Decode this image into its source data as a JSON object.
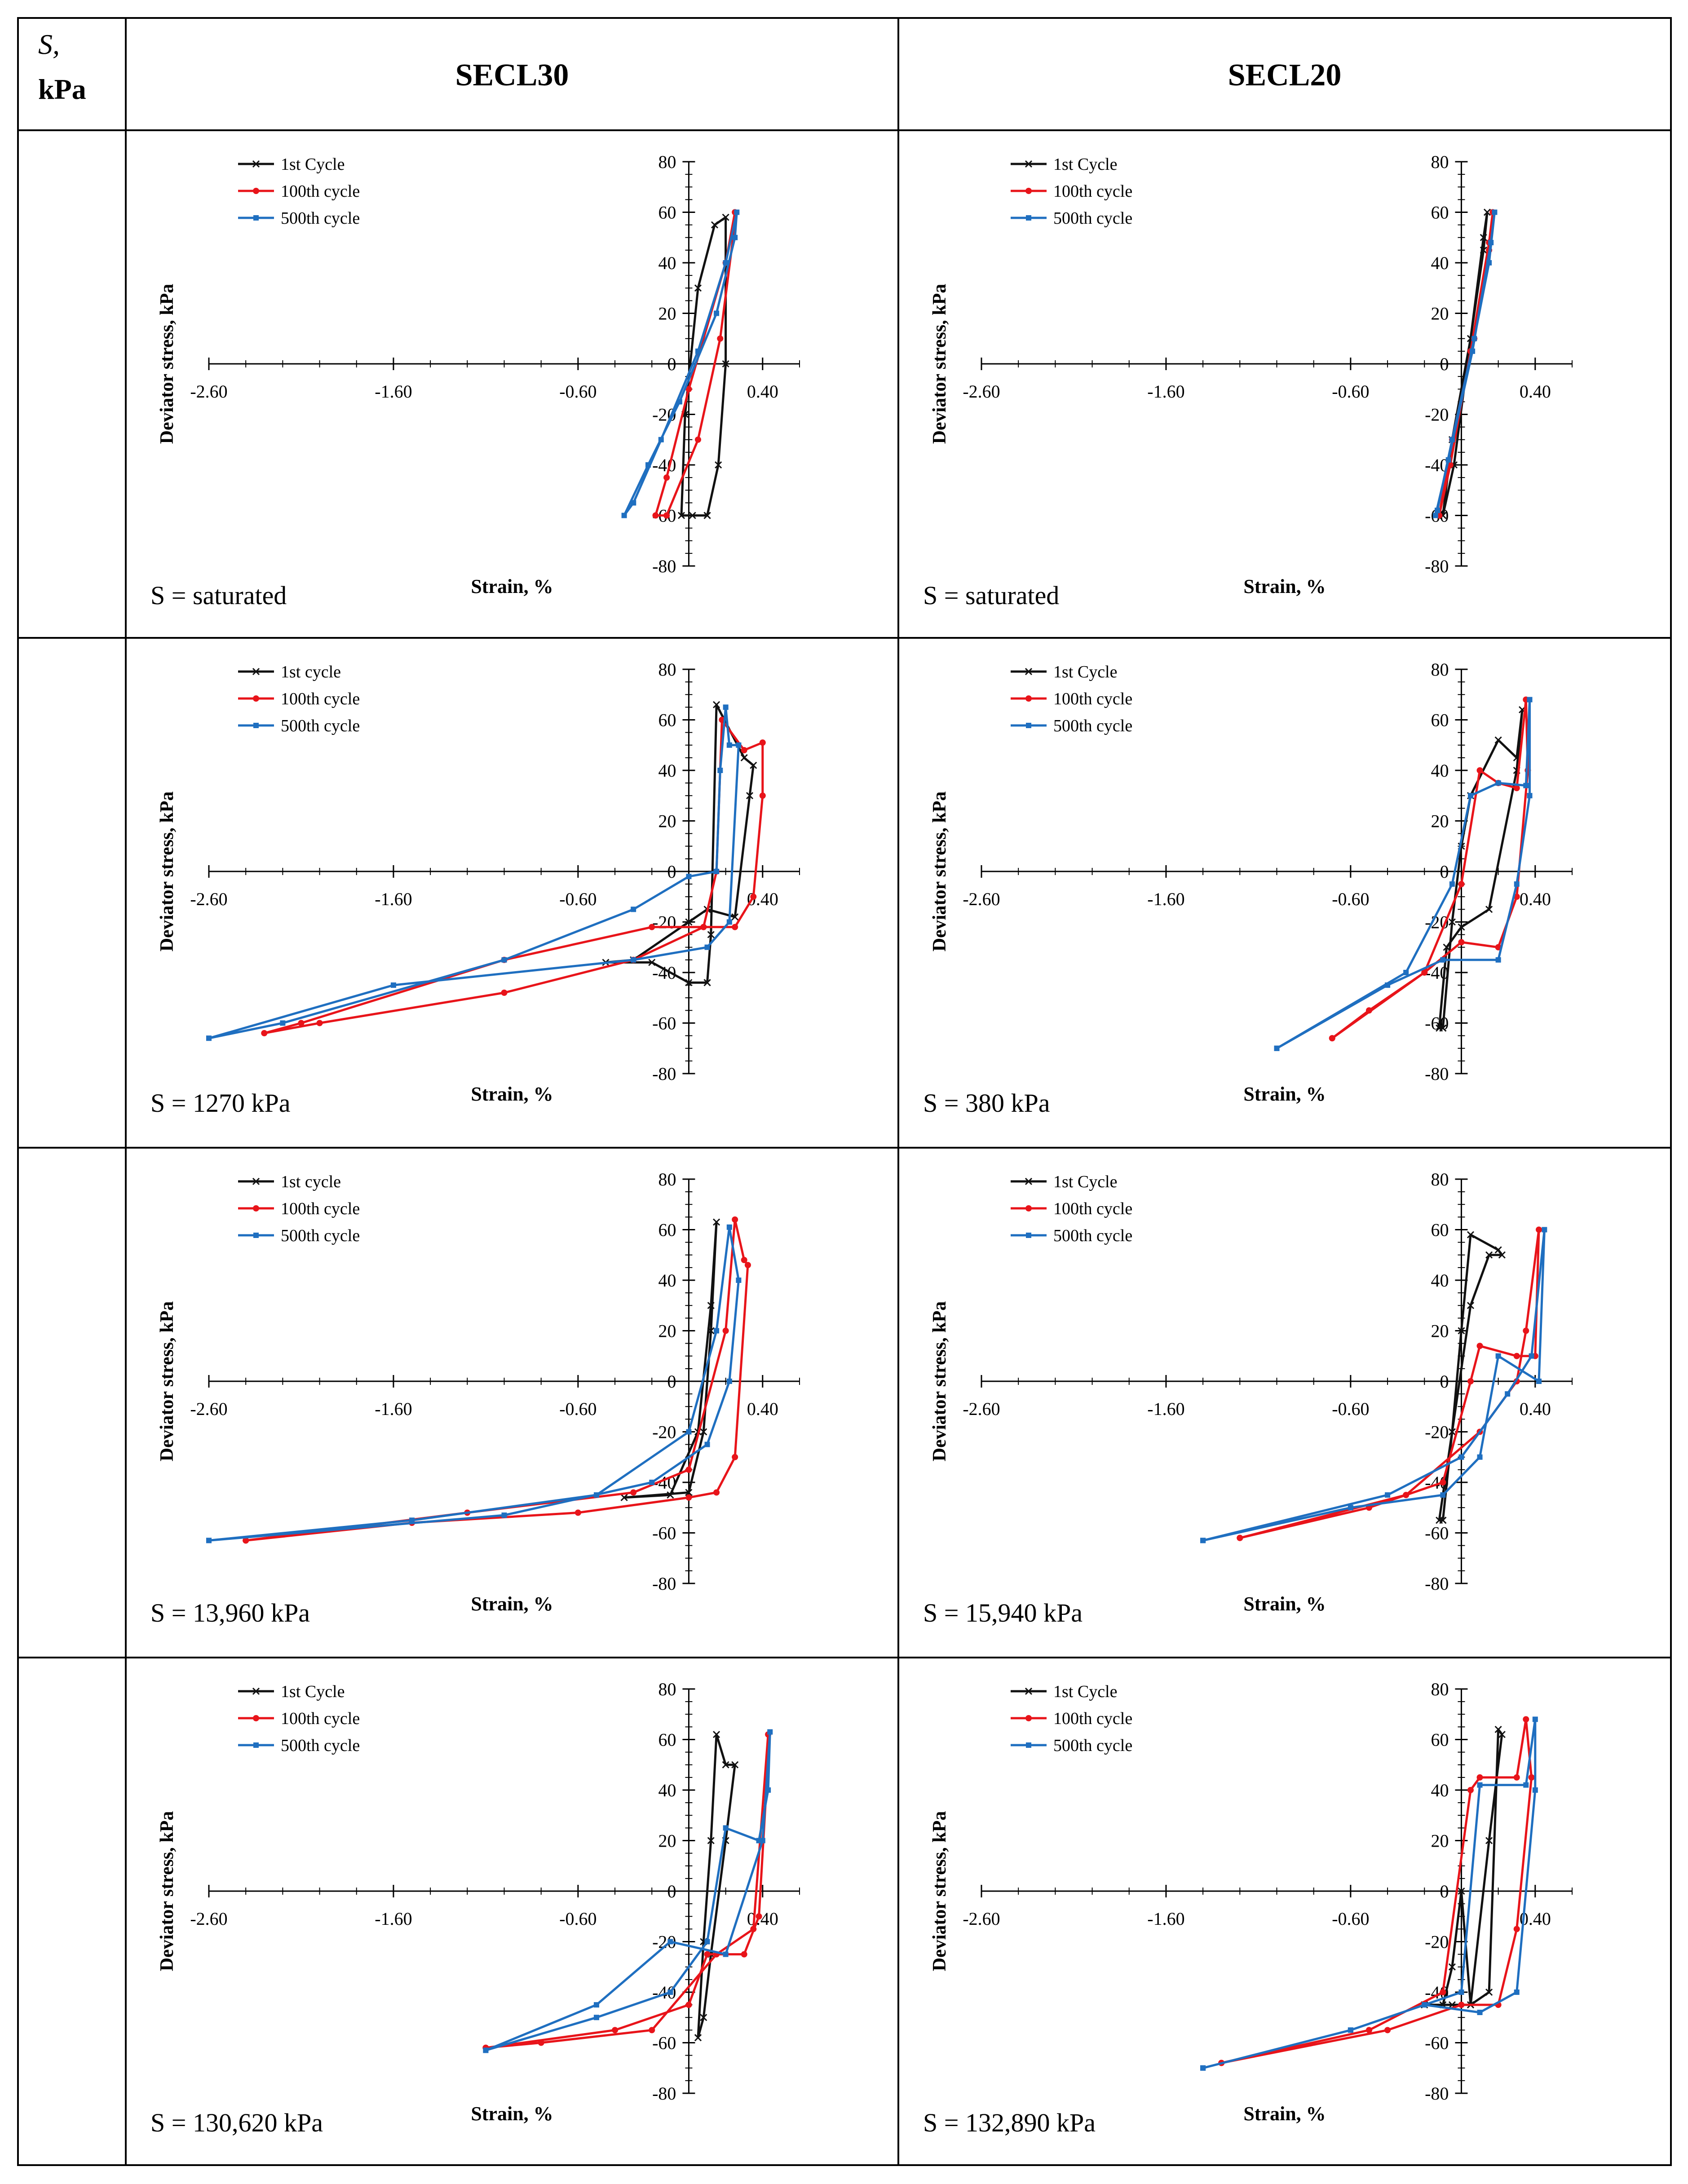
{
  "table": {
    "header": {
      "s_label_italic": "S,",
      "s_label_unit": "kPa",
      "col1": "SECL30",
      "col2": "SECL20"
    }
  },
  "colors": {
    "cycle1": "#111111",
    "cycle100": "#e8141a",
    "cycle500": "#1f6fc0",
    "grid": "#000000"
  },
  "legend_labels": {
    "secl30": [
      "1st Cycle",
      "100th cycle",
      "500th cycle"
    ],
    "secl30_alt": [
      "1st cycle",
      "100th cycle",
      "500th cycle"
    ],
    "secl20": [
      "1st Cycle",
      "100th cycle",
      "500th cycle"
    ]
  },
  "chart_data": [
    {
      "id": "secl30-sat",
      "type": "line",
      "xlabel": "Strain, %",
      "ylabel": "Deviator stress, kPa",
      "xlim": [
        -2.6,
        0.6
      ],
      "ylim": [
        -80,
        80
      ],
      "xticks": [
        "-2.60",
        "-1.60",
        "-0.60",
        "0.40"
      ],
      "yticks": [
        80,
        60,
        40,
        20,
        0,
        -20,
        -40,
        -60,
        -80
      ],
      "caption": "S = saturated",
      "legend": [
        "1st Cycle",
        "100th cycle",
        "500th cycle"
      ],
      "series": [
        {
          "name": "1st Cycle",
          "x": [
            0.1,
            0.16,
            0.2,
            0.2,
            0.14,
            0.05,
            -0.02,
            -0.04,
            0.02,
            0.1
          ],
          "y": [
            -60,
            -40,
            0,
            58,
            55,
            30,
            -20,
            -60,
            -60,
            -60
          ]
        },
        {
          "name": "100th cycle",
          "x": [
            -0.12,
            0.05,
            0.17,
            0.24,
            0.25,
            0.2,
            0.0,
            -0.12,
            -0.18,
            -0.12
          ],
          "y": [
            -60,
            -30,
            10,
            50,
            60,
            40,
            -10,
            -45,
            -60,
            -60
          ]
        },
        {
          "name": "500th cycle",
          "x": [
            -0.3,
            -0.15,
            0.05,
            0.2,
            0.26,
            0.25,
            0.15,
            -0.05,
            -0.22,
            -0.35,
            -0.3
          ],
          "y": [
            -55,
            -30,
            5,
            40,
            60,
            50,
            20,
            -15,
            -40,
            -60,
            -55
          ]
        }
      ]
    },
    {
      "id": "secl20-sat",
      "type": "line",
      "xlabel": "Strain, %",
      "ylabel": "Deviator stress, kPa",
      "xlim": [
        -2.6,
        0.6
      ],
      "ylim": [
        -80,
        80
      ],
      "xticks": [
        "-2.60",
        "-1.60",
        "-0.60",
        "0.40"
      ],
      "yticks": [
        80,
        60,
        40,
        20,
        0,
        -20,
        -40,
        -60,
        -80
      ],
      "caption": "S = saturated",
      "legend": [
        "1st Cycle",
        "100th cycle",
        "500th cycle"
      ],
      "series": [
        {
          "name": "1st Cycle",
          "x": [
            -0.1,
            -0.05,
            0.05,
            0.12,
            0.14,
            0.12,
            0.05,
            -0.04,
            -0.1
          ],
          "y": [
            -60,
            -30,
            10,
            45,
            60,
            50,
            10,
            -40,
            -60
          ]
        },
        {
          "name": "100th cycle",
          "x": [
            -0.12,
            -0.05,
            0.07,
            0.15,
            0.17,
            0.15,
            0.05,
            -0.06,
            -0.12
          ],
          "y": [
            -60,
            -30,
            10,
            45,
            60,
            48,
            5,
            -40,
            -60
          ]
        },
        {
          "name": "500th cycle",
          "x": [
            -0.13,
            -0.05,
            0.07,
            0.15,
            0.18,
            0.16,
            0.06,
            -0.07,
            -0.14,
            -0.13
          ],
          "y": [
            -58,
            -30,
            10,
            40,
            60,
            48,
            5,
            -38,
            -60,
            -58
          ]
        }
      ]
    },
    {
      "id": "secl30-1270",
      "type": "line",
      "xlabel": "Strain, %",
      "ylabel": "Deviator stress, kPa",
      "xlim": [
        -2.6,
        0.6
      ],
      "ylim": [
        -80,
        80
      ],
      "xticks": [
        "-2.60",
        "-1.60",
        "-0.60",
        "0.40"
      ],
      "yticks": [
        80,
        60,
        40,
        20,
        0,
        -20,
        -40,
        -60,
        -80
      ],
      "caption": "S = 1270 kPa",
      "legend": [
        "1st cycle",
        "100th cycle",
        "500th cycle"
      ],
      "series": [
        {
          "name": "1st cycle",
          "x": [
            0.1,
            0.12,
            0.15,
            0.3,
            0.35,
            0.33,
            0.25,
            0.1,
            0.0,
            -0.3,
            -0.45,
            -0.2,
            0.0,
            0.1
          ],
          "y": [
            -44,
            -25,
            66,
            45,
            42,
            30,
            -18,
            -15,
            -20,
            -35,
            -36,
            -36,
            -44,
            -44
          ]
        },
        {
          "name": "100th cycle",
          "x": [
            0.08,
            0.15,
            0.18,
            0.3,
            0.4,
            0.4,
            0.35,
            0.25,
            -0.2,
            -1.0,
            -2.1,
            -2.3,
            -2.0,
            -1.0,
            -0.3,
            0.08
          ],
          "y": [
            -22,
            0,
            60,
            48,
            51,
            30,
            -10,
            -22,
            -22,
            -35,
            -60,
            -64,
            -60,
            -48,
            -35,
            -22
          ]
        },
        {
          "name": "500th cycle",
          "x": [
            0.15,
            0.17,
            0.2,
            0.22,
            0.27,
            0.22,
            0.1,
            -0.3,
            -1.6,
            -2.6,
            -2.2,
            -1.0,
            -0.3,
            0.0,
            0.15
          ],
          "y": [
            0,
            40,
            65,
            50,
            50,
            -20,
            -30,
            -35,
            -45,
            -66,
            -60,
            -35,
            -15,
            -2,
            0
          ]
        }
      ]
    },
    {
      "id": "secl20-380",
      "type": "line",
      "xlabel": "Strain, %",
      "ylabel": "Deviator stress, kPa",
      "xlim": [
        -2.6,
        0.6
      ],
      "ylim": [
        -80,
        80
      ],
      "xticks": [
        "-2.60",
        "-1.60",
        "-0.60",
        "0.40"
      ],
      "yticks": [
        80,
        60,
        40,
        20,
        0,
        -20,
        -40,
        -60,
        -80
      ],
      "caption": "S = 380 kPa",
      "legend": [
        "1st Cycle",
        "100th cycle",
        "500th cycle"
      ],
      "series": [
        {
          "name": "1st Cycle",
          "x": [
            -0.1,
            -0.05,
            0.0,
            0.05,
            0.2,
            0.3,
            0.33,
            0.3,
            0.15,
            0.0,
            -0.08,
            -0.12,
            -0.1
          ],
          "y": [
            -62,
            -20,
            10,
            30,
            52,
            45,
            64,
            40,
            -15,
            -22,
            -30,
            -62,
            -62
          ]
        },
        {
          "name": "100th cycle",
          "x": [
            -0.7,
            -0.2,
            0.0,
            0.1,
            0.2,
            0.3,
            0.35,
            0.36,
            0.3,
            0.2,
            0.0,
            -0.2,
            -0.5,
            -0.7
          ],
          "y": [
            -66,
            -40,
            -5,
            40,
            35,
            33,
            68,
            40,
            -10,
            -30,
            -28,
            -40,
            -55,
            -66
          ]
        },
        {
          "name": "500th cycle",
          "x": [
            -1.0,
            -0.3,
            -0.05,
            0.05,
            0.2,
            0.35,
            0.37,
            0.37,
            0.3,
            0.2,
            -0.1,
            -0.4,
            -1.0
          ],
          "y": [
            -70,
            -40,
            -5,
            30,
            35,
            34,
            68,
            30,
            -5,
            -35,
            -35,
            -45,
            -70
          ]
        }
      ]
    },
    {
      "id": "secl30-13960",
      "type": "line",
      "xlabel": "Strain, %",
      "ylabel": "Deviator stress, kPa",
      "xlim": [
        -2.6,
        0.6
      ],
      "ylim": [
        -80,
        80
      ],
      "xticks": [
        "-2.60",
        "-1.60",
        "-0.60",
        "0.40"
      ],
      "yticks": [
        80,
        60,
        40,
        20,
        0,
        -20,
        -40,
        -60,
        -80
      ],
      "caption": "S = 13,960 kPa",
      "legend": [
        "1st cycle",
        "100th cycle",
        "500th cycle"
      ],
      "series": [
        {
          "name": "1st cycle",
          "x": [
            -0.35,
            0.0,
            0.08,
            0.12,
            0.15,
            0.12,
            0.05,
            -0.1,
            -0.35
          ],
          "y": [
            -46,
            -44,
            -20,
            20,
            63,
            30,
            -20,
            -45,
            -46
          ]
        },
        {
          "name": "100th cycle",
          "x": [
            -2.4,
            -1.2,
            -0.3,
            0.0,
            0.2,
            0.25,
            0.3,
            0.32,
            0.25,
            0.15,
            0.0,
            -0.6,
            -1.5,
            -2.4
          ],
          "y": [
            -63,
            -52,
            -44,
            -35,
            20,
            64,
            48,
            46,
            -30,
            -44,
            -46,
            -52,
            -56,
            -63
          ]
        },
        {
          "name": "500th cycle",
          "x": [
            -2.6,
            -1.5,
            -0.5,
            0.0,
            0.15,
            0.22,
            0.27,
            0.22,
            0.1,
            -0.2,
            -1.0,
            -2.6
          ],
          "y": [
            -63,
            -55,
            -45,
            -20,
            20,
            61,
            40,
            0,
            -25,
            -40,
            -53,
            -63
          ]
        }
      ]
    },
    {
      "id": "secl20-15940",
      "type": "line",
      "xlabel": "Strain, %",
      "ylabel": "Deviator stress, kPa",
      "xlim": [
        -2.6,
        0.6
      ],
      "ylim": [
        -80,
        80
      ],
      "xticks": [
        "-2.60",
        "-1.60",
        "-0.60",
        "0.40"
      ],
      "yticks": [
        80,
        60,
        40,
        20,
        0,
        -20,
        -40,
        -60,
        -80
      ],
      "caption": "S = 15,940 kPa",
      "legend": [
        "1st Cycle",
        "100th cycle",
        "500th cycle"
      ],
      "series": [
        {
          "name": "1st Cycle",
          "x": [
            -0.1,
            -0.05,
            0.0,
            0.05,
            0.2,
            0.22,
            0.15,
            0.05,
            -0.05,
            -0.12,
            -0.1
          ],
          "y": [
            -55,
            -20,
            20,
            58,
            52,
            50,
            50,
            30,
            -20,
            -55,
            -55
          ]
        },
        {
          "name": "100th cycle",
          "x": [
            -1.2,
            -0.5,
            -0.1,
            0.05,
            0.1,
            0.3,
            0.4,
            0.42,
            0.35,
            0.3,
            0.1,
            -0.3,
            -1.2
          ],
          "y": [
            -62,
            -50,
            -40,
            0,
            14,
            10,
            10,
            60,
            20,
            0,
            -20,
            -45,
            -62
          ]
        },
        {
          "name": "500th cycle",
          "x": [
            -1.4,
            -0.6,
            -0.1,
            0.1,
            0.2,
            0.42,
            0.45,
            0.38,
            0.25,
            0.0,
            -0.4,
            -1.4
          ],
          "y": [
            -63,
            -50,
            -45,
            -30,
            10,
            0,
            60,
            10,
            -5,
            -30,
            -45,
            -63
          ]
        }
      ]
    },
    {
      "id": "secl30-130620",
      "type": "line",
      "xlabel": "Strain, %",
      "ylabel": "Deviator stress, kPa",
      "xlim": [
        -2.6,
        0.6
      ],
      "ylim": [
        -80,
        80
      ],
      "xticks": [
        "-2.60",
        "-1.60",
        "-0.60",
        "0.40"
      ],
      "yticks": [
        80,
        60,
        40,
        20,
        0,
        -20,
        -40,
        -60,
        -80
      ],
      "caption": "S = 130,620 kPa",
      "legend": [
        "1st Cycle",
        "100th cycle",
        "500th cycle"
      ],
      "series": [
        {
          "name": "1st Cycle",
          "x": [
            0.05,
            0.08,
            0.12,
            0.15,
            0.2,
            0.25,
            0.2,
            0.12,
            0.08,
            0.05
          ],
          "y": [
            -58,
            -20,
            20,
            62,
            50,
            50,
            20,
            -25,
            -50,
            -58
          ]
        },
        {
          "name": "100th cycle",
          "x": [
            -1.1,
            -0.4,
            0.0,
            0.1,
            0.3,
            0.38,
            0.42,
            0.43,
            0.35,
            0.15,
            -0.2,
            -0.8,
            -1.1
          ],
          "y": [
            -62,
            -55,
            -45,
            -25,
            -25,
            -10,
            40,
            62,
            -15,
            -25,
            -55,
            -60,
            -62
          ]
        },
        {
          "name": "500th cycle",
          "x": [
            -1.1,
            -0.5,
            -0.1,
            0.1,
            0.2,
            0.38,
            0.43,
            0.44,
            0.4,
            0.2,
            -0.1,
            -0.5,
            -1.1
          ],
          "y": [
            -63,
            -50,
            -40,
            -20,
            25,
            20,
            40,
            63,
            20,
            -25,
            -20,
            -45,
            -63
          ]
        }
      ]
    },
    {
      "id": "secl20-132890",
      "type": "line",
      "xlabel": "Strain, %",
      "ylabel": "Deviator stress, kPa",
      "xlim": [
        -2.6,
        0.6
      ],
      "ylim": [
        -80,
        80
      ],
      "xticks": [
        "-2.60",
        "-1.60",
        "-0.60",
        "0.40"
      ],
      "yticks": [
        80,
        60,
        40,
        20,
        0,
        -20,
        -40,
        -60,
        -80
      ],
      "caption": "S = 132,890 kPa",
      "legend": [
        "1st Cycle",
        "100th cycle",
        "500th cycle"
      ],
      "series": [
        {
          "name": "1st Cycle",
          "x": [
            -0.2,
            -0.1,
            -0.05,
            0.0,
            0.05,
            0.15,
            0.2,
            0.22,
            0.15,
            0.05,
            -0.05,
            -0.2
          ],
          "y": [
            -45,
            -45,
            -30,
            0,
            -45,
            -40,
            64,
            62,
            20,
            -45,
            -45,
            -45
          ]
        },
        {
          "name": "100th cycle",
          "x": [
            -1.3,
            -0.5,
            -0.1,
            0.05,
            0.1,
            0.3,
            0.35,
            0.38,
            0.3,
            0.2,
            0.0,
            -0.4,
            -1.3
          ],
          "y": [
            -68,
            -55,
            -40,
            40,
            45,
            45,
            68,
            45,
            -15,
            -45,
            -45,
            -55,
            -68
          ]
        },
        {
          "name": "500th cycle",
          "x": [
            -1.4,
            -0.6,
            -0.2,
            0.0,
            0.1,
            0.35,
            0.4,
            0.4,
            0.3,
            0.1,
            -0.2,
            -0.6,
            -1.4
          ],
          "y": [
            -70,
            -55,
            -45,
            -40,
            42,
            42,
            68,
            40,
            -40,
            -48,
            -45,
            -55,
            -70
          ]
        }
      ]
    }
  ]
}
